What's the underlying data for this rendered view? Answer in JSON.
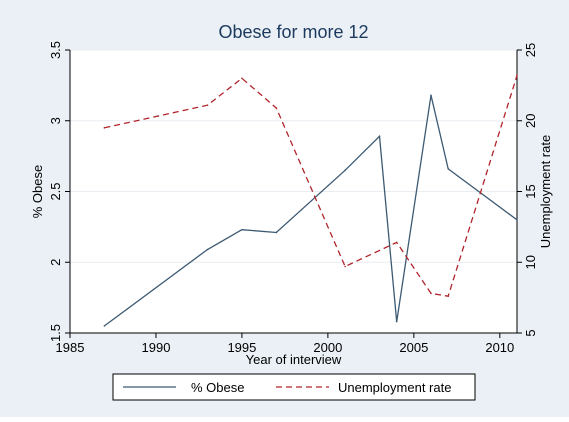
{
  "chart_data": {
    "type": "line",
    "title": "Obese for more 12",
    "xlabel": "Year of interview",
    "ylabel_left": "% Obese",
    "ylabel_right": "Unemployment rate",
    "xlim": [
      1985,
      2011
    ],
    "ylim_left": [
      1.5,
      3.5
    ],
    "ylim_right": [
      5,
      25
    ],
    "x_ticks": [
      "1985",
      "1990",
      "1995",
      "2000",
      "2005",
      "2010"
    ],
    "y_ticks_left": [
      "1.5",
      "2",
      "2.5",
      "3",
      "3.5"
    ],
    "y_ticks_right": [
      "5",
      "10",
      "15",
      "20",
      "25"
    ],
    "grid": true,
    "legend_position": "bottom",
    "series": [
      {
        "name": "% Obese",
        "axis": "left",
        "style": "solid",
        "color": "#3d5a73",
        "x": [
          1987,
          1993,
          1995,
          1997,
          2001,
          2003,
          2004,
          2006,
          2007,
          2011
        ],
        "y": [
          1.55,
          2.09,
          2.23,
          2.21,
          2.65,
          2.89,
          1.58,
          3.18,
          2.66,
          2.3
        ]
      },
      {
        "name": "Unemployment rate",
        "axis": "right",
        "style": "dashed",
        "color": "#b0252b",
        "x": [
          1987,
          1993,
          1995,
          1997,
          2001,
          2004,
          2006,
          2007,
          2011
        ],
        "y": [
          19.5,
          21.1,
          23.0,
          20.9,
          9.7,
          11.4,
          7.8,
          7.6,
          23.2
        ]
      }
    ]
  },
  "colors": {
    "outer_background": "#eaf0f5",
    "plot_background": "#ffffff",
    "grid": "#e9edf1",
    "title": "#1c3a5e",
    "axis": "#000000"
  }
}
